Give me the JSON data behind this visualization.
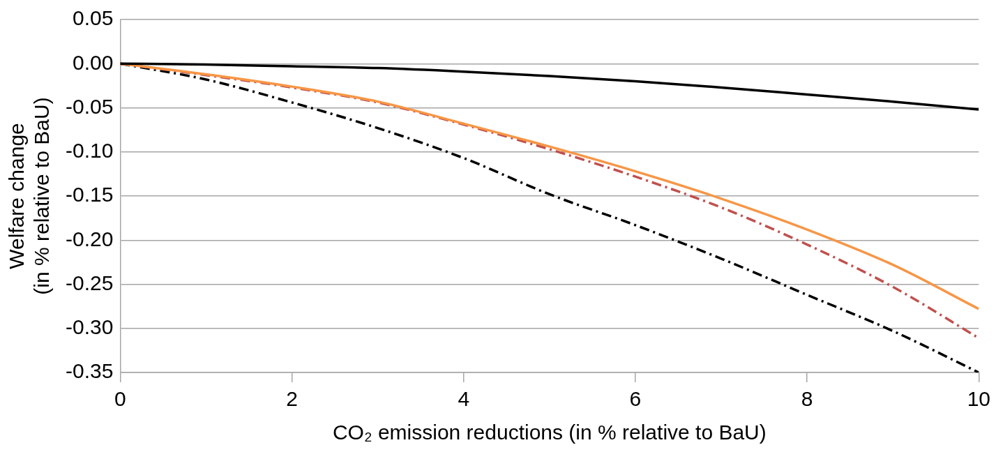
{
  "chart_data": {
    "type": "line",
    "xlabel": "CO₂ emission reductions (in % relative to BaU)",
    "ylabel": "Welfare change\n(in % relative to BaU)",
    "x": [
      0,
      1,
      2,
      3,
      4,
      5,
      6,
      7,
      8,
      9,
      10
    ],
    "xlim": [
      0,
      10
    ],
    "xticks": [
      0,
      2,
      4,
      6,
      8,
      10
    ],
    "ylim": [
      -0.35,
      0.05
    ],
    "yticks": [
      {
        "value": -0.35,
        "label": "-0.35"
      },
      {
        "value": -0.3,
        "label": "-0.30"
      },
      {
        "value": -0.25,
        "label": "-0.25"
      },
      {
        "value": -0.2,
        "label": "-0.20"
      },
      {
        "value": -0.15,
        "label": "-0.15"
      },
      {
        "value": -0.1,
        "label": "-0.10"
      },
      {
        "value": -0.05,
        "label": "-0.05"
      },
      {
        "value": 0,
        "label": "0.00"
      },
      {
        "value": 0.05,
        "label": "0.05"
      }
    ],
    "grid": "y",
    "legend": false,
    "marker": "none",
    "series": [
      {
        "color": "#000000",
        "line_style": "solid",
        "values": [
          0,
          -0.001,
          -0.003,
          -0.005,
          -0.009,
          -0.014,
          -0.02,
          -0.027,
          -0.035,
          -0.043,
          -0.052
        ]
      },
      {
        "color": "#f79646",
        "line_style": "solid",
        "values": [
          0,
          -0.012,
          -0.026,
          -0.043,
          -0.068,
          -0.094,
          -0.122,
          -0.153,
          -0.188,
          -0.228,
          -0.278
        ]
      },
      {
        "color": "#c0504d",
        "line_style": "dashdot",
        "values": [
          0,
          -0.013,
          -0.027,
          -0.044,
          -0.069,
          -0.097,
          -0.128,
          -0.163,
          -0.205,
          -0.253,
          -0.311
        ]
      },
      {
        "color": "#000000",
        "line_style": "dashdot",
        "values": [
          0,
          -0.018,
          -0.044,
          -0.073,
          -0.107,
          -0.148,
          -0.183,
          -0.221,
          -0.262,
          -0.303,
          -0.35
        ]
      }
    ]
  }
}
